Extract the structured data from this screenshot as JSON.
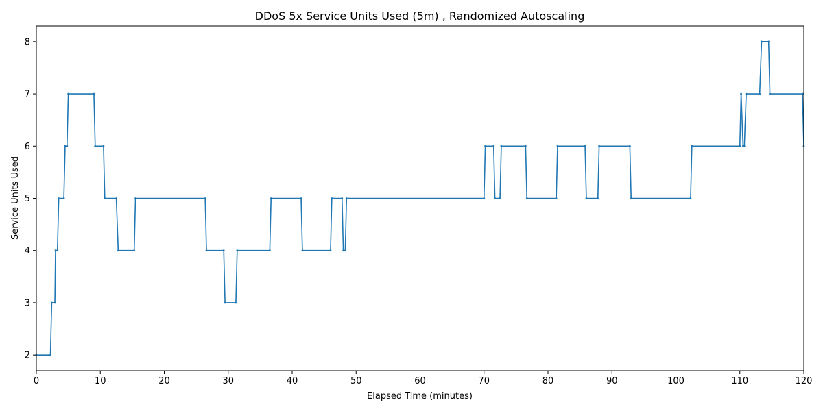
{
  "chart_data": {
    "type": "line",
    "title": "DDoS 5x Service Units Used (5m) , Randomized Autoscaling",
    "xlabel": "Elapsed Time (minutes)",
    "ylabel": "Service Units Used",
    "xlim": [
      0,
      120
    ],
    "ylim": [
      1.7,
      8.3
    ],
    "xticks": [
      0,
      10,
      20,
      30,
      40,
      50,
      60,
      70,
      80,
      90,
      100,
      110,
      120
    ],
    "yticks": [
      2,
      3,
      4,
      5,
      6,
      7,
      8
    ],
    "grid": false,
    "legend": "none",
    "series": [
      {
        "color": "#1f77b4",
        "marker": "dot",
        "x": [
          0,
          2.2,
          2.4,
          2.9,
          3.0,
          3.3,
          3.5,
          4.3,
          4.5,
          4.8,
          5.0,
          9.0,
          9.2,
          10.5,
          10.7,
          12.5,
          12.8,
          15.3,
          15.5,
          26.4,
          26.6,
          29.3,
          29.5,
          31.2,
          31.4,
          36.5,
          36.7,
          41.4,
          41.6,
          46.0,
          46.2,
          47.8,
          48.0,
          48.3,
          48.5,
          70.0,
          70.2,
          71.5,
          71.7,
          72.5,
          72.7,
          76.5,
          76.7,
          81.3,
          81.5,
          85.8,
          86.0,
          87.8,
          88.0,
          92.8,
          93.0,
          102.3,
          102.5,
          110.0,
          110.2,
          110.5,
          110.7,
          111.0,
          113.1,
          113.4,
          114.5,
          114.7,
          119.8,
          120.0
        ],
        "y": [
          2,
          2,
          3,
          3,
          4,
          4,
          5,
          5,
          6,
          6,
          7,
          7,
          6,
          6,
          5,
          5,
          4,
          4,
          5,
          5,
          4,
          4,
          3,
          3,
          4,
          4,
          5,
          5,
          4,
          4,
          5,
          5,
          4,
          4,
          5,
          5,
          6,
          6,
          5,
          5,
          6,
          6,
          5,
          5,
          6,
          6,
          5,
          5,
          6,
          6,
          5,
          5,
          6,
          6,
          7,
          6,
          6,
          7,
          7,
          8,
          8,
          7,
          7,
          6
        ]
      }
    ]
  }
}
